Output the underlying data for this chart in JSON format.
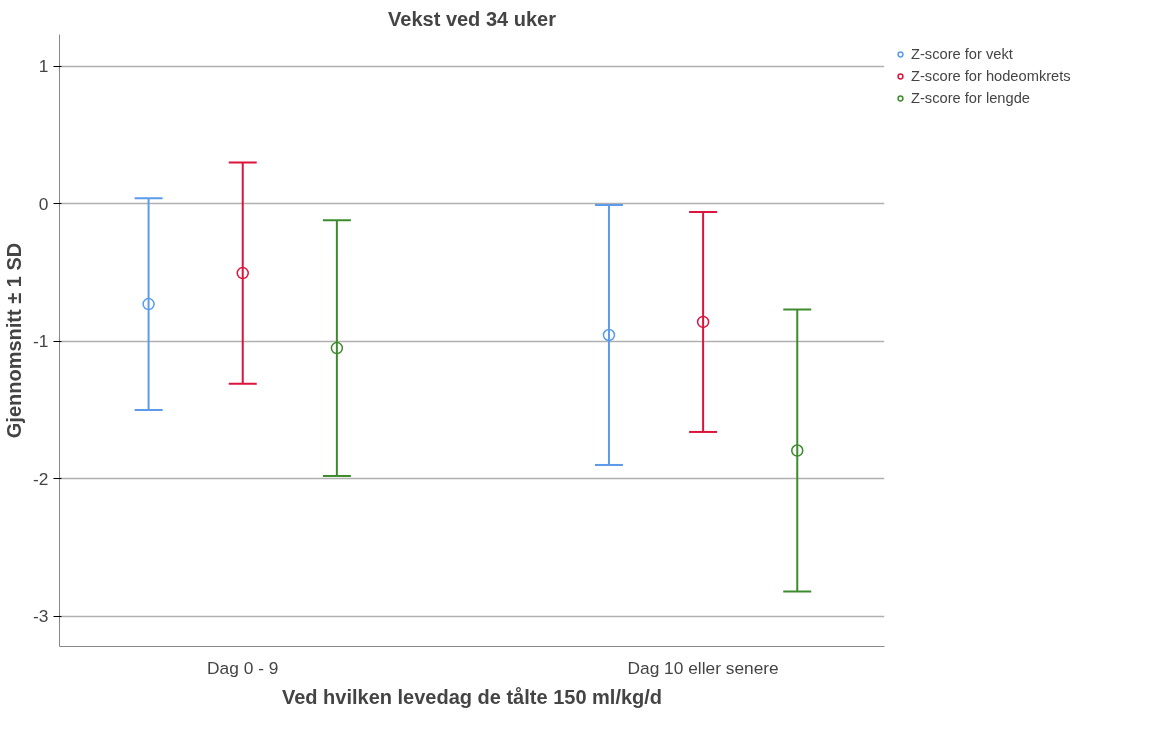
{
  "chart_data": {
    "type": "scatter",
    "title": "Vekst ved 34 uker",
    "xlabel": "Ved hvilken levedag de tålte 150 ml/kg/d",
    "ylabel": "Gjennomsnitt ± 1 SD",
    "categories": [
      "Dag 0 - 9",
      "Dag 10 eller senere"
    ],
    "series": [
      {
        "name": "Z-score for vekt",
        "color": "#5b9bea",
        "values": [
          -0.73,
          -0.955
        ],
        "errors": [
          0.77,
          0.945
        ]
      },
      {
        "name": "Z-score for hodeomkrets",
        "color": "#dc143c",
        "values": [
          -0.505,
          -0.86
        ],
        "errors": [
          0.805,
          0.8
        ]
      },
      {
        "name": "Z-score for lengde",
        "color": "#3c8c2c",
        "values": [
          -1.05,
          -1.795
        ],
        "errors": [
          0.93,
          1.025
        ]
      }
    ],
    "ylim": [
      -3.22,
      1.23
    ],
    "yticks": [
      -3,
      -2,
      -1,
      0,
      1
    ],
    "grid": "y",
    "legend": "top right",
    "marker": "circle"
  }
}
